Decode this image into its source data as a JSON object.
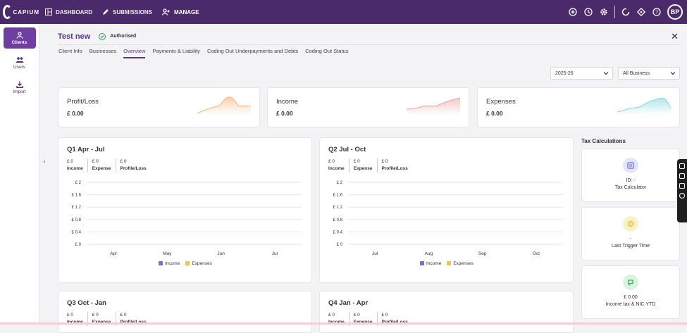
{
  "brand": {
    "name": "CAPIUM"
  },
  "nav": [
    {
      "label": "DASHBOARD",
      "icon": "dashboard-icon"
    },
    {
      "label": "SUBMISSIONS",
      "icon": "pencil-icon"
    },
    {
      "label": "MANAGE",
      "icon": "users-icon"
    }
  ],
  "user": {
    "initials": "BP"
  },
  "sidebar": [
    {
      "label": "Clients",
      "icon": "person-icon"
    },
    {
      "label": "Users",
      "icon": "group-icon"
    },
    {
      "label": "Import",
      "icon": "import-icon"
    }
  ],
  "client": {
    "name": "Test new",
    "status": "Authorised"
  },
  "tabs": [
    "Client Info",
    "Businesses",
    "Overview",
    "Payments & Liability",
    "Coding Out Underpayments and Debts",
    "Coding Out Status"
  ],
  "filters": {
    "year": "2025-26",
    "business": "All Business"
  },
  "kpis": [
    {
      "title": "Profit/Loss",
      "value": "£ 0.00",
      "color": "#f6b27a"
    },
    {
      "title": "Income",
      "value": "£ 0.00",
      "color": "#e9a3a3"
    },
    {
      "title": "Expenses",
      "value": "£ 0.00",
      "color": "#7fd6e0"
    }
  ],
  "quarters": [
    {
      "title": "Q1 Apr - Jul",
      "income": "£ 0",
      "expense": "£ 0",
      "profit": "£ 0",
      "months": [
        "Apr",
        "May",
        "Jun",
        "Jul"
      ]
    },
    {
      "title": "Q2 Jul - Oct",
      "income": "£ 0",
      "expense": "£ 0",
      "profit": "£ 0",
      "months": [
        "Jul",
        "Aug",
        "Sep",
        "Oct"
      ]
    },
    {
      "title": "Q3 Oct - Jan",
      "income": "£ 0",
      "expense": "£ 0",
      "profit": "£ 0",
      "months": []
    },
    {
      "title": "Q4 Jan - Apr",
      "income": "£ 0",
      "expense": "£ 0",
      "profit": "£ 0",
      "months": []
    }
  ],
  "stat_labels": {
    "income": "Income",
    "expense": "Expense",
    "profit": "Profile/Loss"
  },
  "y_ticks": [
    "£ 2",
    "£ 1.6",
    "£ 1.2",
    "£ 0.8",
    "£ 0.4",
    "£ 0"
  ],
  "legend": {
    "income": "Income",
    "expenses": "Expenses",
    "income_color": "#7b6fd0",
    "expenses_color": "#f3c44a"
  },
  "tax": {
    "title": "Tax Calculations",
    "cards": [
      {
        "top": "ID: -",
        "bottom": "Tax Calculator"
      },
      {
        "top": "-",
        "bottom": "Last Trigger Time"
      },
      {
        "top": "£ 0.00",
        "bottom": "Income tax & NIC YTD"
      }
    ]
  },
  "colors": {
    "brand": "#4b2a6b",
    "accent": "#5b3485"
  }
}
